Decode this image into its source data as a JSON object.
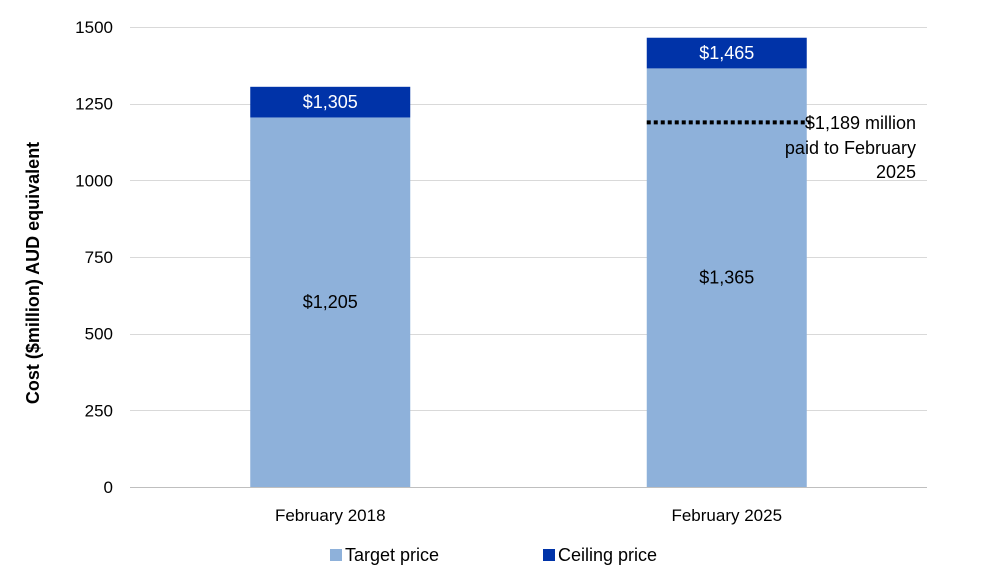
{
  "chart_data": {
    "type": "bar",
    "stacked": true,
    "categories": [
      "February 2018",
      "February 2025"
    ],
    "series": [
      {
        "name": "Target price",
        "values": [
          1205,
          1365
        ],
        "color": "#8EB1DA",
        "labels": [
          "$1,205",
          "$1,365"
        ],
        "label_color": "#000000"
      },
      {
        "name": "Ceiling price",
        "values": [
          100,
          100
        ],
        "color": "#0033A8",
        "labels": [
          "$1,305",
          "$1,465"
        ],
        "label_color": "#ffffff"
      }
    ],
    "ylabel": "Cost ($million) AUD equivalent",
    "ylim": [
      0,
      1500
    ],
    "yticks": [
      0,
      250,
      500,
      750,
      1000,
      1250,
      1500
    ],
    "grid": true,
    "legend_position": "bottom",
    "reference_line": {
      "value": 1189,
      "category": "February 2025",
      "style": "dotted",
      "label_lines": [
        "$1,189 million",
        "paid to February",
        "2025"
      ]
    }
  }
}
